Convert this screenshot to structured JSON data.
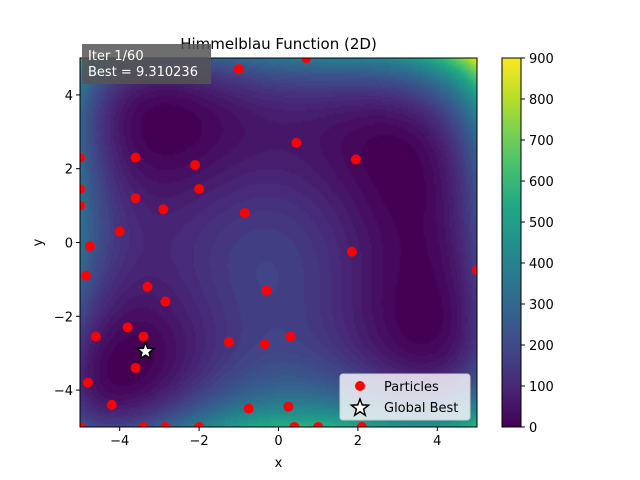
{
  "chart_data": {
    "type": "scatter",
    "title": "Himmelblau Function (2D)",
    "xlabel": "x",
    "ylabel": "y",
    "xlim": [
      -5,
      5
    ],
    "ylim": [
      -5,
      5
    ],
    "xticks": [
      -4,
      -2,
      0,
      2,
      4
    ],
    "yticks": [
      -4,
      -2,
      0,
      2,
      4
    ],
    "x_tick_labels": [
      "−4",
      "−2",
      "0",
      "2",
      "4"
    ],
    "y_tick_labels": [
      "−4",
      "−2",
      "0",
      "2",
      "4"
    ],
    "background": "contourf",
    "colormap": "viridis",
    "colorbar": {
      "range": [
        0,
        900
      ],
      "ticks": [
        0,
        100,
        200,
        300,
        400,
        500,
        600,
        700,
        800,
        900
      ],
      "tick_labels": [
        "0",
        "100",
        "200",
        "300",
        "400",
        "500",
        "600",
        "700",
        "800",
        "900"
      ]
    },
    "info_box": {
      "line1": "Iter 1/60",
      "line2": "Best = 9.310236"
    },
    "legend": {
      "position": "lower right",
      "entries": [
        "Particles",
        "Global Best"
      ]
    },
    "series": [
      {
        "name": "Particles",
        "color": "#ff0000",
        "marker": "circle",
        "points": [
          [
            -1.0,
            4.7
          ],
          [
            0.7,
            5.0
          ],
          [
            -5.0,
            2.3
          ],
          [
            -3.6,
            2.3
          ],
          [
            0.45,
            2.7
          ],
          [
            1.95,
            2.25
          ],
          [
            -2.1,
            2.1
          ],
          [
            -2.0,
            1.45
          ],
          [
            -5.0,
            1.45
          ],
          [
            -3.6,
            1.2
          ],
          [
            -5.0,
            1.0
          ],
          [
            -2.9,
            0.9
          ],
          [
            -0.85,
            0.8
          ],
          [
            -4.0,
            0.3
          ],
          [
            -4.75,
            -0.1
          ],
          [
            1.85,
            -0.25
          ],
          [
            -4.85,
            -0.9
          ],
          [
            5.0,
            -0.75
          ],
          [
            -3.3,
            -1.2
          ],
          [
            -0.3,
            -1.3
          ],
          [
            -2.85,
            -1.6
          ],
          [
            -3.8,
            -2.3
          ],
          [
            -4.6,
            -2.55
          ],
          [
            -3.4,
            -2.55
          ],
          [
            -1.25,
            -2.7
          ],
          [
            -0.35,
            -2.75
          ],
          [
            0.3,
            -2.55
          ],
          [
            -3.6,
            -3.4
          ],
          [
            -4.8,
            -3.8
          ],
          [
            -4.2,
            -4.4
          ],
          [
            -0.75,
            -4.5
          ],
          [
            0.25,
            -4.45
          ],
          [
            -5.0,
            -5.0
          ],
          [
            -3.4,
            -5.0
          ],
          [
            -2.85,
            -5.0
          ],
          [
            -2.0,
            -5.0
          ],
          [
            0.4,
            -5.0
          ],
          [
            1.0,
            -5.0
          ],
          [
            2.1,
            -5.0
          ]
        ]
      },
      {
        "name": "Global Best",
        "color": "#ffffff",
        "marker": "star",
        "points": [
          [
            -3.35,
            -2.95
          ]
        ]
      }
    ],
    "minima_reference": [
      [
        3.0,
        2.0
      ],
      [
        -2.805,
        3.131
      ],
      [
        -3.779,
        -3.283
      ],
      [
        3.584,
        -1.848
      ]
    ]
  }
}
